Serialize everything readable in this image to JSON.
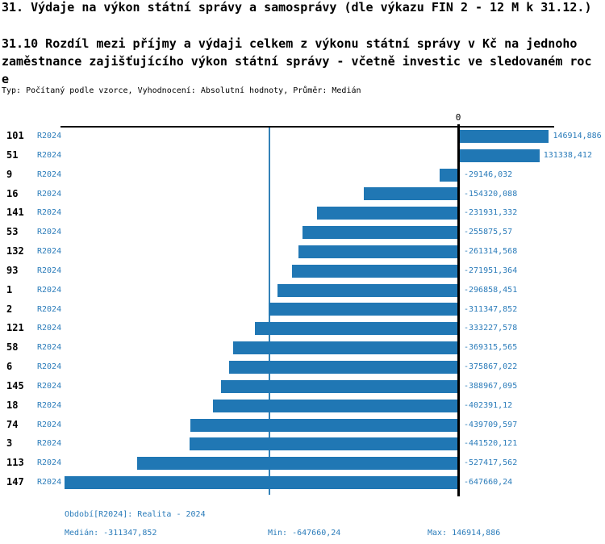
{
  "header": {
    "title": "31. Výdaje na výkon státní správy a samosprávy (dle výkazu FIN 2 - 12 M k 31.12.)",
    "subtitle_line1": "31.10 Rozdíl mezi  příjmy a výdaji celkem z výkonu státní správy v Kč na jednoho",
    "subtitle_line2": "zaměstnance zajišťujícího výkon státní správy - včetně investic ve sledovaném roc",
    "subtitle_line3": "e",
    "meta": "Typ: Počítaný podle vzorce, Vyhodnocení: Absolutní hodnoty, Průměr: Medián"
  },
  "chart": {
    "zero_label": "0"
  },
  "colors": {
    "bar": "#2077b4",
    "text_blue": "#2b7cba",
    "median_line": "#3381b8",
    "axis": "#000000"
  },
  "chart_data": {
    "type": "bar",
    "orientation": "horizontal",
    "period": "R2024",
    "title": "31.10 Rozdíl mezi příjmy a výdaji celkem z výkonu státní správy v Kč na jednoho zaměstnance zajišťujícího výkon státní správy - včetně investic ve sledovaném roce",
    "categories": [
      "101",
      "51",
      "9",
      "16",
      "141",
      "53",
      "132",
      "93",
      "1",
      "2",
      "121",
      "58",
      "6",
      "145",
      "18",
      "74",
      "3",
      "113",
      "147"
    ],
    "values": [
      146914.886,
      131338.412,
      -29146.032,
      -154320.088,
      -231931.332,
      -255875.57,
      -261314.568,
      -271951.364,
      -296858.451,
      -311347.852,
      -333227.578,
      -369315.565,
      -375867.022,
      -388967.095,
      -402391.12,
      -439709.597,
      -441520.121,
      -527417.562,
      -647660.24
    ],
    "value_labels": [
      "146914,886",
      "131338,412",
      "-29146,032",
      "-154320,088",
      "-231931,332",
      "-255875,57",
      "-261314,568",
      "-271951,364",
      "-296858,451",
      "-311347,852",
      "-333227,578",
      "-369315,565",
      "-375867,022",
      "-388967,095",
      "-402391,12",
      "-439709,597",
      "-441520,121",
      "-527417,562",
      "-647660,24"
    ],
    "xlim": [
      -660000,
      160000
    ],
    "grid": false,
    "legend": "none",
    "median": -311347.852,
    "min": -647660.24,
    "max": 146914.886
  },
  "footer": {
    "period_info": "Období[R2024]: Realita - 2024",
    "median": "Medián: -311347,852",
    "min": "Min: -647660,24",
    "max": "Max: 146914,886"
  }
}
